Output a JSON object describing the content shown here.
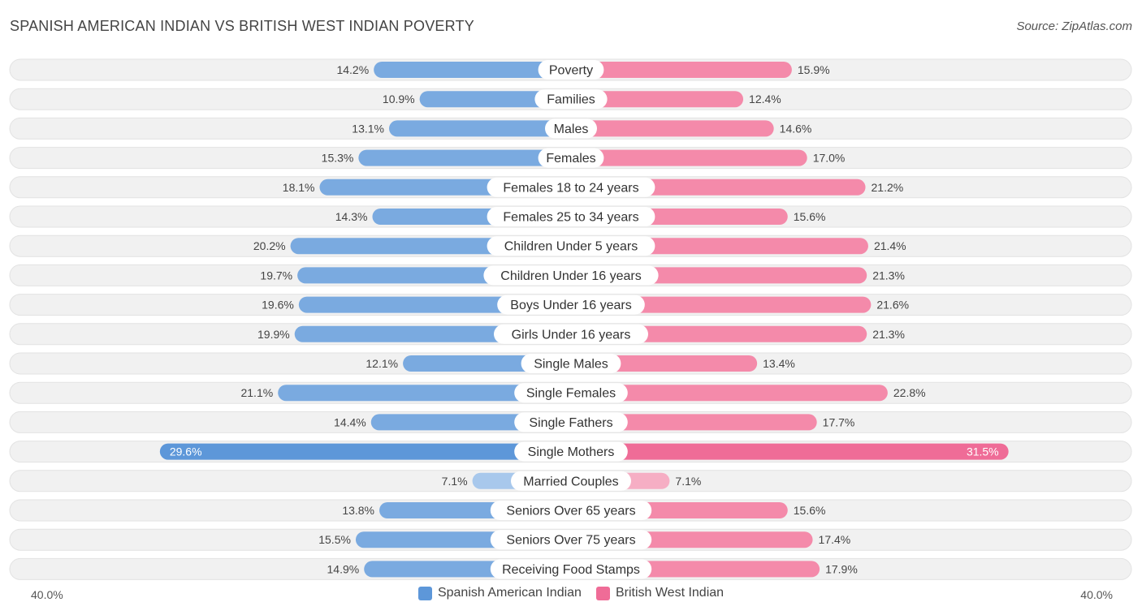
{
  "header": {
    "title": "SPANISH AMERICAN INDIAN VS BRITISH WEST INDIAN POVERTY",
    "source": "Source: ZipAtlas.com"
  },
  "axis": {
    "left_label": "40.0%",
    "right_label": "40.0%"
  },
  "legend": {
    "left_label": "Spanish American Indian",
    "right_label": "British West Indian"
  },
  "colors": {
    "left": "#7aaae0",
    "left_light": "#a8c8ec",
    "left_strong": "#5d97d9",
    "right": "#f48aaa",
    "right_light": "#f6aec4",
    "right_strong": "#ef6c97",
    "row_bg": "#f1f1f1"
  },
  "chart_data": {
    "type": "bar",
    "title": "SPANISH AMERICAN INDIAN VS BRITISH WEST INDIAN POVERTY",
    "xlim": [
      0,
      40
    ],
    "unit": "%",
    "categories": [
      "Poverty",
      "Families",
      "Males",
      "Females",
      "Females 18 to 24 years",
      "Females 25 to 34 years",
      "Children Under 5 years",
      "Children Under 16 years",
      "Boys Under 16 years",
      "Girls Under 16 years",
      "Single Males",
      "Single Females",
      "Single Fathers",
      "Single Mothers",
      "Married Couples",
      "Seniors Over 65 years",
      "Seniors Over 75 years",
      "Receiving Food Stamps"
    ],
    "series": [
      {
        "name": "Spanish American Indian",
        "values": [
          14.2,
          10.9,
          13.1,
          15.3,
          18.1,
          14.3,
          20.2,
          19.7,
          19.6,
          19.9,
          12.1,
          21.1,
          14.4,
          29.6,
          7.1,
          13.8,
          15.5,
          14.9
        ],
        "labels": [
          "14.2%",
          "10.9%",
          "13.1%",
          "15.3%",
          "18.1%",
          "14.3%",
          "20.2%",
          "19.7%",
          "19.6%",
          "19.9%",
          "12.1%",
          "21.1%",
          "14.4%",
          "29.6%",
          "7.1%",
          "13.8%",
          "15.5%",
          "14.9%"
        ]
      },
      {
        "name": "British West Indian",
        "values": [
          15.9,
          12.4,
          14.6,
          17.0,
          21.2,
          15.6,
          21.4,
          21.3,
          21.6,
          21.3,
          13.4,
          22.8,
          17.7,
          31.5,
          7.1,
          15.6,
          17.4,
          17.9
        ],
        "labels": [
          "15.9%",
          "12.4%",
          "14.6%",
          "17.0%",
          "21.2%",
          "15.6%",
          "21.4%",
          "21.3%",
          "21.6%",
          "21.3%",
          "13.4%",
          "22.8%",
          "17.7%",
          "31.5%",
          "7.1%",
          "15.6%",
          "17.4%",
          "17.9%"
        ]
      }
    ]
  }
}
